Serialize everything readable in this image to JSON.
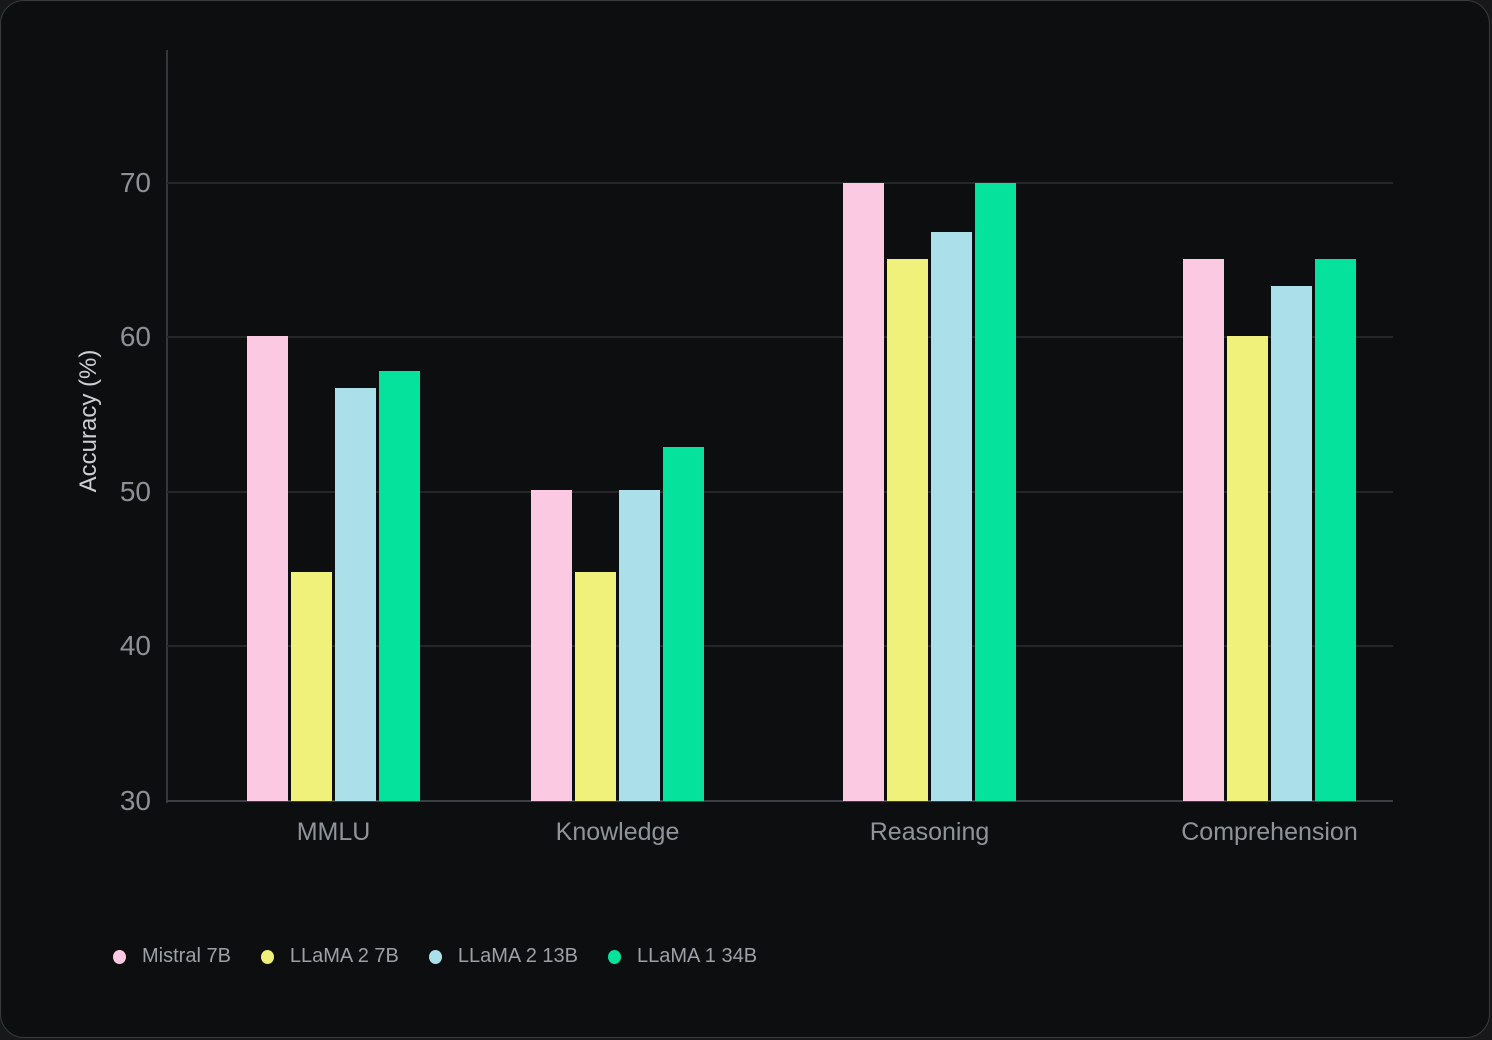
{
  "chart_data": {
    "type": "bar",
    "title": "",
    "xlabel": "",
    "ylabel": "Accuracy (%)",
    "categories": [
      "MMLU",
      "Knowledge",
      "Reasoning",
      "Comprehension"
    ],
    "series": [
      {
        "name": "Mistral 7B",
        "color": "#fcc9e2",
        "values": [
          60.1,
          50.1,
          70.0,
          65.1
        ]
      },
      {
        "name": "LLaMA 2 7B",
        "color": "#eff17b",
        "values": [
          44.8,
          44.8,
          65.1,
          60.1
        ]
      },
      {
        "name": "LLaMA 2 13B",
        "color": "#abe0eb",
        "values": [
          56.7,
          50.1,
          66.8,
          63.3
        ]
      },
      {
        "name": "LLaMA 1 34B",
        "color": "#04e29b",
        "values": [
          57.8,
          52.9,
          70.0,
          65.1
        ]
      }
    ],
    "yticks": [
      30,
      40,
      50,
      60,
      70
    ],
    "ylim": [
      30,
      78.6
    ],
    "grid": true,
    "legend_position": "bottom-left",
    "colors": {
      "background": "#0d0e10",
      "gridline": "#242628",
      "axis_line": "#34373c",
      "baseline": "#3c4045",
      "tick_text": "#8d9097",
      "category_text": "#8f939a",
      "legend_text": "#9ca0a7",
      "axis_title_text": "#ccced3"
    }
  }
}
